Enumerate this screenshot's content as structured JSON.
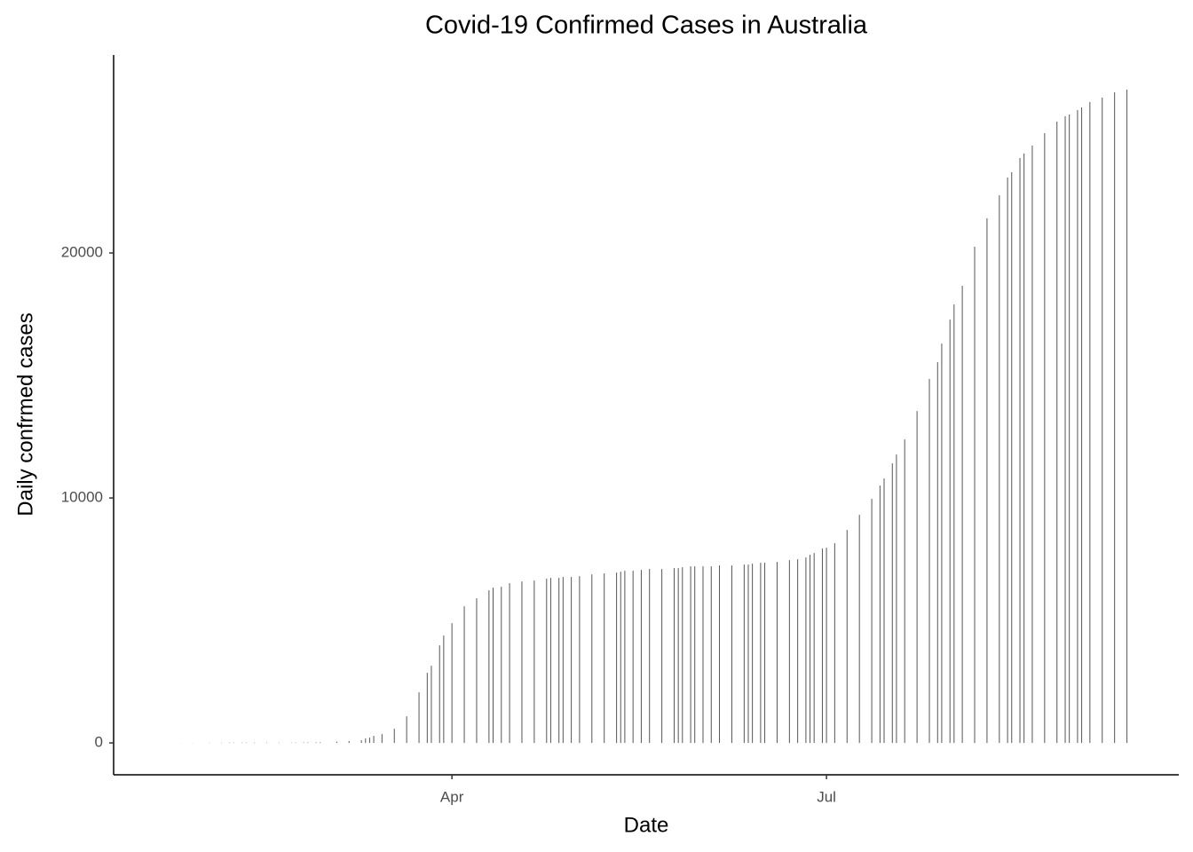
{
  "chart_data": {
    "type": "bar",
    "title": "Covid-19 Confirmed Cases in Australia",
    "x_label": "Date",
    "y_label": "Daily confrmed cases",
    "color": "#555555",
    "x": [
      26,
      29,
      33,
      36,
      38,
      39,
      41,
      42,
      44,
      47,
      50,
      53,
      54,
      56,
      57,
      59,
      60,
      64,
      67,
      70,
      71,
      72,
      73,
      75,
      78,
      81,
      84,
      86,
      87,
      89,
      90,
      92,
      95,
      98,
      101,
      102,
      104,
      106,
      109,
      112,
      115,
      116,
      118,
      119,
      121,
      123,
      126,
      129,
      132,
      133,
      134,
      136,
      138,
      140,
      143,
      146,
      147,
      148,
      150,
      151,
      153,
      155,
      157,
      160,
      163,
      164,
      165,
      167,
      168,
      171,
      174,
      176,
      178,
      179,
      180,
      182,
      183,
      185,
      188,
      191,
      194,
      196,
      197,
      199,
      200,
      202,
      205,
      208,
      210,
      211,
      213,
      214,
      216,
      219,
      222,
      225,
      227,
      228,
      230,
      231,
      233,
      236,
      239,
      241,
      242,
      244,
      245,
      247,
      250,
      253,
      256
    ],
    "values": [
      4,
      5,
      9,
      12,
      15,
      15,
      15,
      15,
      15,
      15,
      15,
      15,
      15,
      22,
      23,
      25,
      26,
      52,
      77,
      112,
      181,
      217,
      290,
      362,
      580,
      1087,
      2065,
      2862,
      3152,
      3985,
      4384,
      4891,
      5580,
      5905,
      6231,
      6340,
      6376,
      6521,
      6594,
      6630,
      6702,
      6739,
      6739,
      6775,
      6775,
      6811,
      6884,
      6920,
      6956,
      6992,
      7029,
      7029,
      7065,
      7101,
      7101,
      7137,
      7137,
      7174,
      7210,
      7210,
      7210,
      7210,
      7246,
      7246,
      7282,
      7282,
      7319,
      7355,
      7355,
      7391,
      7463,
      7500,
      7572,
      7681,
      7753,
      7934,
      7971,
      8152,
      8695,
      9311,
      9963,
      10507,
      10797,
      11413,
      11775,
      12391,
      13550,
      14855,
      15543,
      16304,
      17282,
      17898,
      18659,
      20253,
      21412,
      22354,
      23079,
      23296,
      23876,
      24057,
      24383,
      24890,
      25361,
      25579,
      25651,
      25832,
      25941,
      26159,
      26340,
      26557,
      26666
    ],
    "xlim": [
      9.8,
      268.6
    ],
    "xticks": [
      {
        "value": 92,
        "label": "Apr"
      },
      {
        "value": 183,
        "label": "Jul"
      }
    ],
    "ylim": [
      -1300,
      28080
    ],
    "yticks": [
      0,
      10000,
      20000
    ],
    "grid": false
  }
}
